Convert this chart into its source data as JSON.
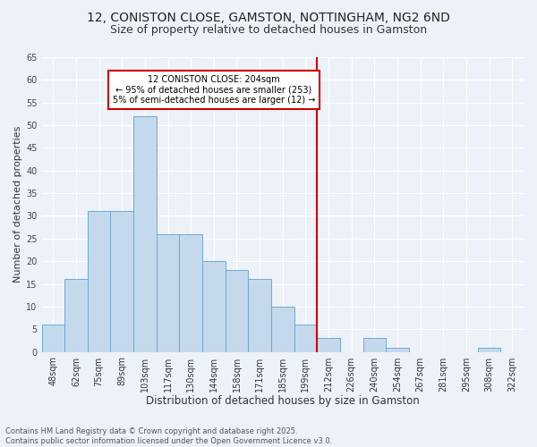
{
  "title": "12, CONISTON CLOSE, GAMSTON, NOTTINGHAM, NG2 6ND",
  "subtitle": "Size of property relative to detached houses in Gamston",
  "xlabel": "Distribution of detached houses by size in Gamston",
  "ylabel": "Number of detached properties",
  "categories": [
    "48sqm",
    "62sqm",
    "75sqm",
    "89sqm",
    "103sqm",
    "117sqm",
    "130sqm",
    "144sqm",
    "158sqm",
    "171sqm",
    "185sqm",
    "199sqm",
    "212sqm",
    "226sqm",
    "240sqm",
    "254sqm",
    "267sqm",
    "281sqm",
    "295sqm",
    "308sqm",
    "322sqm"
  ],
  "values": [
    6,
    16,
    31,
    31,
    52,
    26,
    26,
    20,
    18,
    16,
    10,
    6,
    3,
    0,
    3,
    1,
    0,
    0,
    0,
    1,
    0
  ],
  "bar_color": "#c5d9ed",
  "bar_edge_color": "#6aaad4",
  "vline_x_index": 11.5,
  "vline_color": "#cc0000",
  "annotation_text": "12 CONISTON CLOSE: 204sqm\n← 95% of detached houses are smaller (253)\n5% of semi-detached houses are larger (12) →",
  "annotation_box_color": "#cc0000",
  "background_color": "#edf2f9",
  "grid_color": "#ffffff",
  "ylim": [
    0,
    65
  ],
  "yticks": [
    0,
    5,
    10,
    15,
    20,
    25,
    30,
    35,
    40,
    45,
    50,
    55,
    60,
    65
  ],
  "footer_line1": "Contains HM Land Registry data © Crown copyright and database right 2025.",
  "footer_line2": "Contains public sector information licensed under the Open Government Licence v3.0.",
  "title_fontsize": 10,
  "subtitle_fontsize": 9,
  "xlabel_fontsize": 8.5,
  "ylabel_fontsize": 8,
  "tick_fontsize": 7,
  "annotation_fontsize": 7,
  "footer_fontsize": 6
}
